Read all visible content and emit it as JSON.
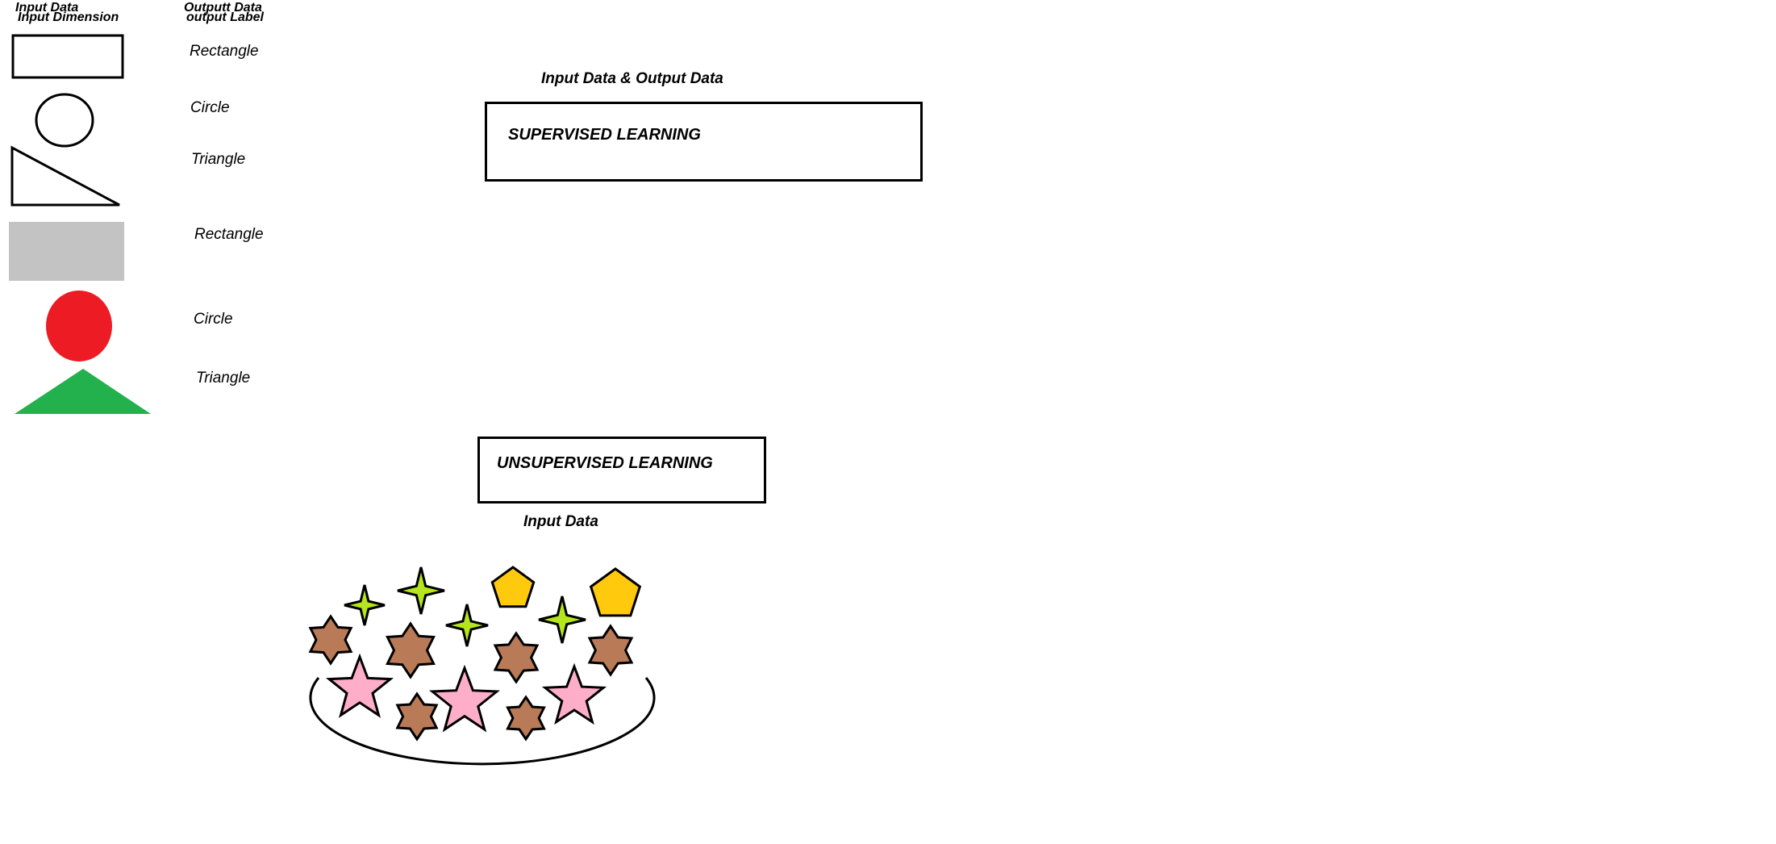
{
  "legend": {
    "col1_line1": "Input Data",
    "col1_line2": "Input Dimension",
    "col2_line1": "Outputt Data",
    "col2_line2": "output Label",
    "rows": [
      {
        "shape": "rectangle-outline",
        "label": "Rectangle"
      },
      {
        "shape": "circle-outline",
        "label": "Circle"
      },
      {
        "shape": "triangle-outline",
        "label": "Triangle"
      },
      {
        "shape": "rectangle-filled",
        "label": "Rectangle",
        "color": "#c3c3c3"
      },
      {
        "shape": "circle-filled",
        "label": "Circle",
        "color": "#ed1c24"
      },
      {
        "shape": "triangle-filled",
        "label": "Triangle",
        "color": "#22b14c"
      }
    ]
  },
  "supervised": {
    "caption": "Input Data & Output Data",
    "title": "SUPERVISED LEARNING"
  },
  "unsupervised": {
    "title": "UNSUPERVISED LEARNING",
    "caption": "Input Data"
  },
  "colors": {
    "four_point_star": "#b5e61d",
    "pentagon": "#ffc90e",
    "six_point_star": "#b97a57",
    "five_point_star": "#ffaec9",
    "outline": "#000000"
  }
}
